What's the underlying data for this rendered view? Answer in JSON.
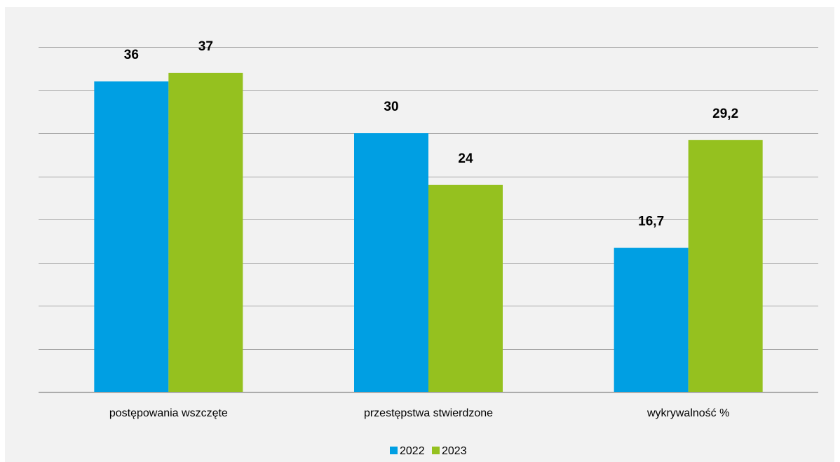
{
  "chart_data": {
    "type": "bar",
    "categories": [
      "postępowania wszczęte",
      "przestępstwa stwierdzone",
      "wykrywalność %"
    ],
    "series": [
      {
        "name": "2022",
        "values": [
          36,
          30,
          16.7
        ],
        "labels": [
          "36",
          "30",
          "16,7"
        ],
        "color": "#009fe3"
      },
      {
        "name": "2023",
        "values": [
          37,
          24,
          29.2
        ],
        "labels": [
          "37",
          "24",
          "29,2"
        ],
        "color": "#95c11f"
      }
    ],
    "ylim": [
      0,
      40
    ],
    "grid": true,
    "legend_position": "bottom",
    "title": "",
    "xlabel": "",
    "ylabel": ""
  }
}
